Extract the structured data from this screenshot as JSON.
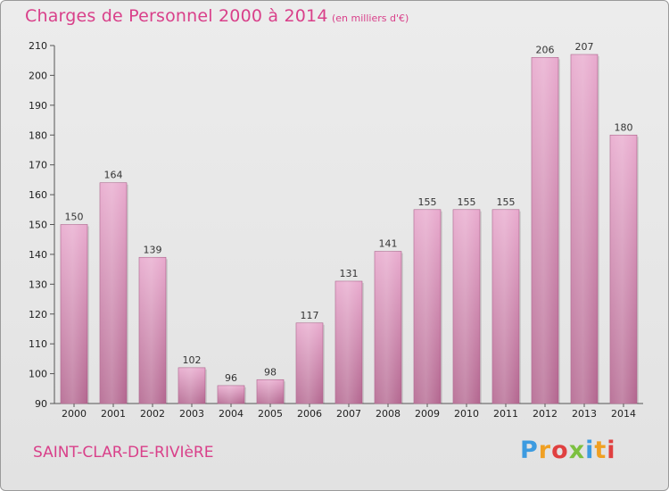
{
  "header": {
    "title": "Charges de Personnel 2000 à 2014",
    "subtitle": "(en milliers d'€)"
  },
  "footer": {
    "commune": "SAINT-CLAR-DE-RIVIèRE",
    "logo_text": "Proxiti"
  },
  "colors": {
    "accent": "#d9408a",
    "bar_top": "#e7a6cb",
    "bar_bottom": "#b3668f"
  },
  "chart_data": {
    "type": "bar",
    "title": "Charges de Personnel 2000 à 2014",
    "subtitle": "(en milliers d'€)",
    "categories": [
      "2000",
      "2001",
      "2002",
      "2003",
      "2004",
      "2005",
      "2006",
      "2007",
      "2008",
      "2009",
      "2010",
      "2011",
      "2012",
      "2013",
      "2014"
    ],
    "values": [
      150,
      164,
      139,
      102,
      96,
      98,
      117,
      131,
      141,
      155,
      155,
      155,
      206,
      207,
      180
    ],
    "ylim": [
      90,
      210
    ],
    "yticks": [
      90,
      100,
      110,
      120,
      130,
      140,
      150,
      160,
      170,
      180,
      190,
      200,
      210
    ],
    "grid": false,
    "legend": "none"
  }
}
